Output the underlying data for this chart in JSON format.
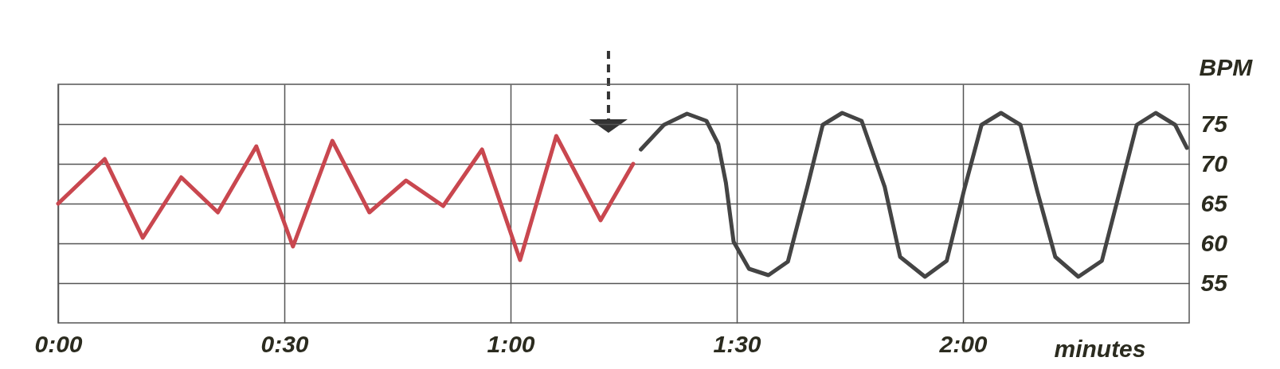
{
  "chart_data": {
    "type": "line",
    "xlabel": "minutes",
    "ylabel": "BPM",
    "xlim": [
      0,
      2.5
    ],
    "ylim": [
      50,
      80
    ],
    "xticks": [
      {
        "value": 0,
        "label": "0:00"
      },
      {
        "value": 0.5,
        "label": "0:30"
      },
      {
        "value": 1,
        "label": "1:00"
      },
      {
        "value": 1.5,
        "label": "1:30"
      },
      {
        "value": 2,
        "label": "2:00"
      }
    ],
    "yticks": [
      55,
      60,
      65,
      70,
      75
    ],
    "grid": true,
    "marker": "none",
    "line_style": "solid",
    "series": [
      {
        "color": "#c9474f",
        "x": [
          0,
          0.103,
          0.187,
          0.272,
          0.353,
          0.438,
          0.519,
          0.606,
          0.688,
          0.769,
          0.851,
          0.937,
          1.021,
          1.101,
          1.199,
          1.271
        ],
        "values": [
          65,
          70.6,
          60.7,
          68.3,
          63.9,
          72.2,
          59.6,
          72.9,
          63.9,
          67.9,
          64.7,
          71.8,
          57.9,
          73.5,
          62.9,
          70
        ]
      },
      {
        "color": "#444444",
        "x": [
          1.288,
          1.339,
          1.39,
          1.433,
          1.459,
          1.476,
          1.493,
          1.527,
          1.57,
          1.613,
          1.656,
          1.69,
          1.733,
          1.776,
          1.827,
          1.861,
          1.916,
          1.964,
          2.002,
          2.041,
          2.084,
          2.127,
          2.164,
          2.204,
          2.255,
          2.307,
          2.349,
          2.384,
          2.426,
          2.469,
          2.495
        ],
        "values": [
          71.8,
          74.9,
          76.3,
          75.4,
          72.5,
          67.6,
          60.2,
          56.8,
          56,
          57.7,
          67.1,
          74.9,
          76.4,
          75.4,
          67.1,
          58.3,
          55.8,
          57.8,
          66.6,
          74.9,
          76.4,
          74.9,
          66.6,
          58.3,
          55.8,
          57.8,
          67.1,
          74.9,
          76.4,
          74.9,
          72
        ]
      }
    ]
  }
}
